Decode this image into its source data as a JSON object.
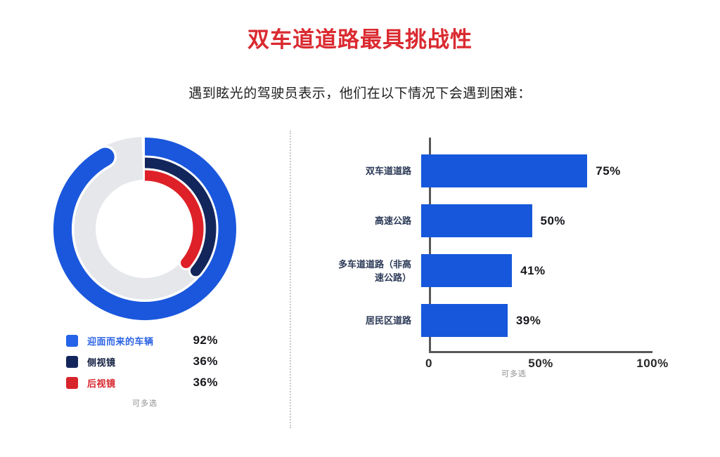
{
  "page": {
    "title": "双车道道路最具挑战性",
    "subtitle": "遇到眩光的驾驶员表示，他们在以下情况下会遇到困难："
  },
  "colors": {
    "title_red": "#da2a30",
    "bar_blue": "#1657db",
    "ring_gray": "#e5e7ea",
    "axis_gray": "#58585a",
    "note_gray": "#8e8e90",
    "label_navy": "#2c3a57"
  },
  "chart_data": [
    {
      "type": "donut",
      "description": "concentric progress rings starting at 12 o'clock, clockwise, rounded end caps",
      "max": 100,
      "series": [
        {
          "name": "迎面而来的车辆",
          "value": 92,
          "value_label": "92%",
          "color": "#1a57dd",
          "legend_color": "#2563e8",
          "label_color": "#2b63e6"
        },
        {
          "name": "侧视镜",
          "value": 36,
          "value_label": "36%",
          "color": "#13265c",
          "legend_color": "#13265c",
          "label_color": "#101c3e"
        },
        {
          "name": "后视镜",
          "value": 36,
          "value_label": "36%",
          "color": "#de2128",
          "legend_color": "#d7242b",
          "label_color": "#d7242b"
        }
      ],
      "note": "可多选"
    },
    {
      "type": "bar",
      "orientation": "horizontal",
      "categories": [
        "双车道道路",
        "高速公路",
        "多车道道路（非高速公路）",
        "居民区道路"
      ],
      "values": [
        75,
        50,
        41,
        39
      ],
      "value_labels": [
        "75%",
        "50%",
        "41%",
        "39%"
      ],
      "x_ticks": [
        "0",
        "50%",
        "100%"
      ],
      "xlim": [
        0,
        100
      ],
      "bar_color": "#1657db",
      "note": "可多选"
    }
  ]
}
